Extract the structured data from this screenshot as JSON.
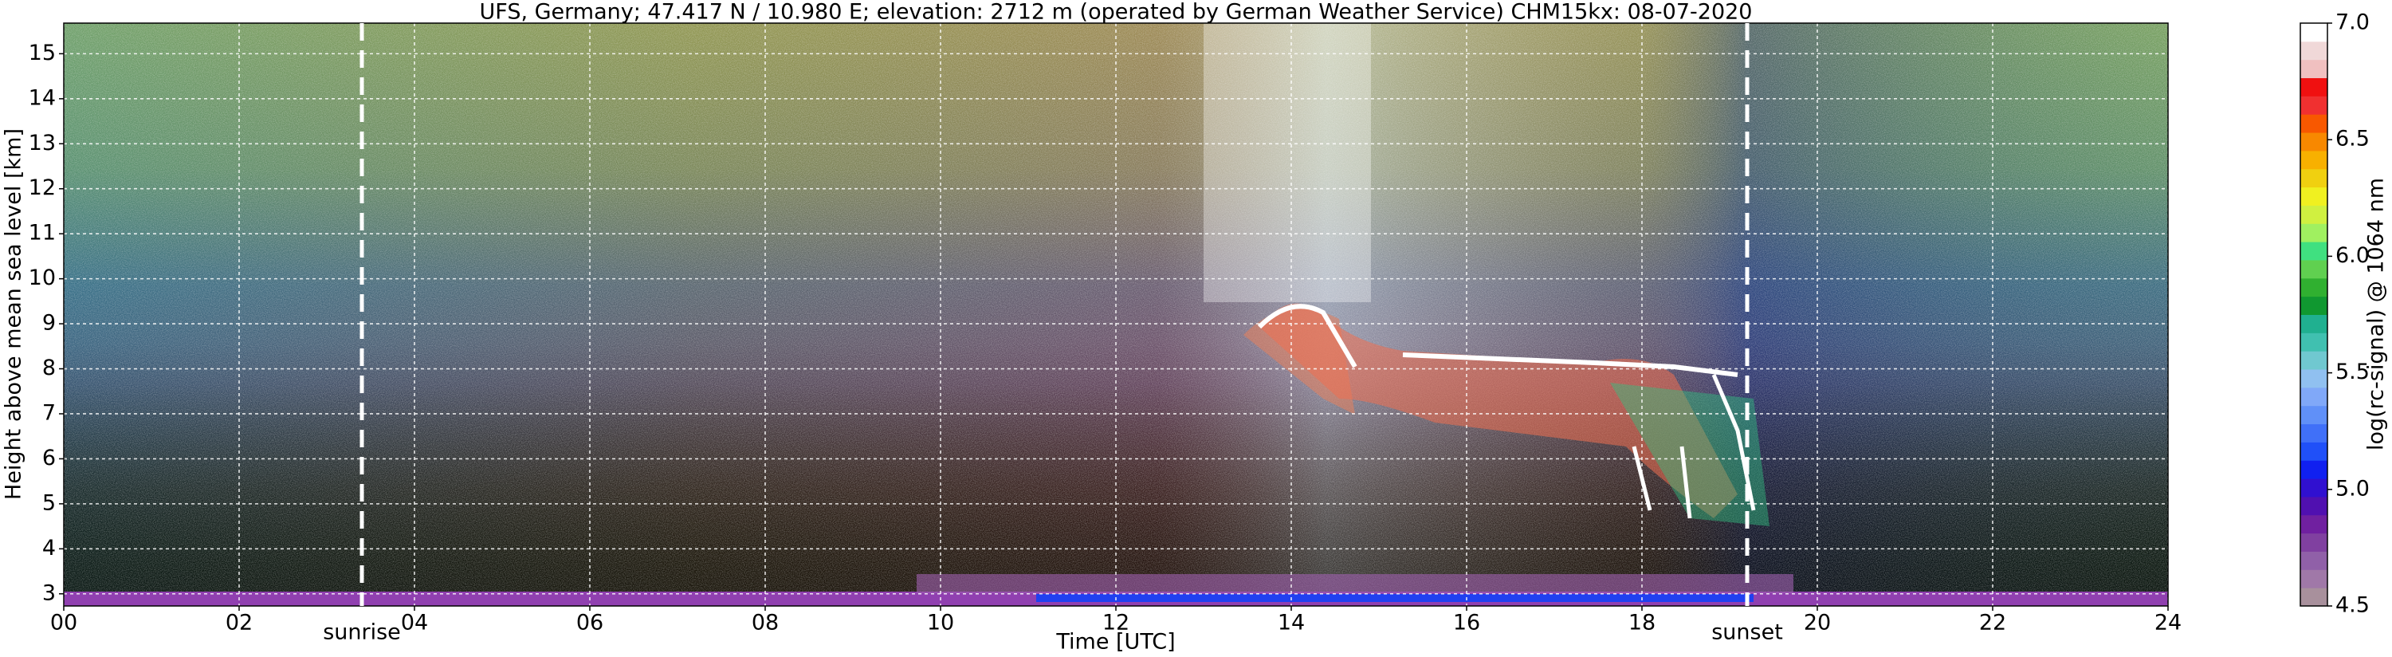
{
  "chart_data": {
    "type": "heatmap",
    "title": "UFS, Germany; 47.417 N / 10.980 E; elevation: 2712 m  (operated by German Weather Service)    CHM15kx: 08-07-2020",
    "xlabel": "Time [UTC]",
    "ylabel": "Height above mean sea level [km]",
    "xlim": [
      0,
      24
    ],
    "ylim": [
      2.73,
      15.68
    ],
    "xticks": [
      {
        "value": 0,
        "label": "00"
      },
      {
        "value": 2,
        "label": "02"
      },
      {
        "value": 4,
        "label": "04"
      },
      {
        "value": 6,
        "label": "06"
      },
      {
        "value": 8,
        "label": "08"
      },
      10,
      12,
      14,
      16,
      18,
      20,
      22,
      24
    ],
    "yticks": [
      3,
      4,
      5,
      6,
      7,
      8,
      9,
      10,
      11,
      12,
      13,
      14,
      15
    ],
    "grid": true,
    "annotations": [
      {
        "text": "sunrise",
        "x": 3.4
      },
      {
        "text": "sunset",
        "x": 19.2
      }
    ],
    "colorbar": {
      "label": "log(rc-signal) @ 1064 nm",
      "clim": [
        4.5,
        7.0
      ],
      "ticks": [
        4.5,
        {
          "value": 5,
          "label": "5.0"
        },
        5.5,
        {
          "value": 6,
          "label": "6.0"
        },
        6.5,
        {
          "value": 7,
          "label": "7.0"
        }
      ],
      "colors": [
        "#a8909c",
        "#a078a8",
        "#9060a8",
        "#8040a0",
        "#7020a0",
        "#5010b0",
        "#3010d0",
        "#1020f0",
        "#2050f8",
        "#4070f8",
        "#6090f8",
        "#80a8f8",
        "#90c0f0",
        "#70c8d0",
        "#40c0b0",
        "#20b090",
        "#109830",
        "#30b030",
        "#60d050",
        "#40e080",
        "#a0f060",
        "#d0f040",
        "#f0f020",
        "#f0d010",
        "#f8b000",
        "#f88800",
        "#f85800",
        "#f03030",
        "#f01010",
        "#f0c0c0",
        "#f0d8d8",
        "#ffffff"
      ]
    }
  }
}
